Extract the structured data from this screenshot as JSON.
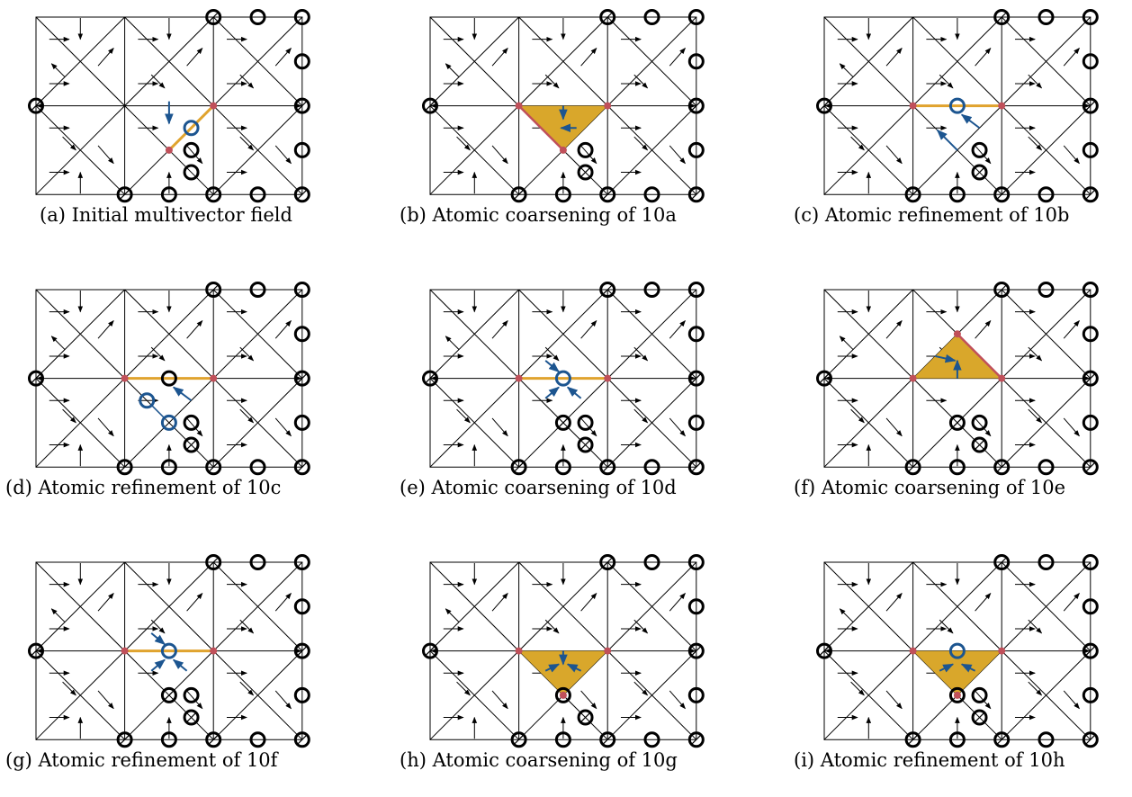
{
  "colors": {
    "grid": "#000000",
    "critical_dot": "#c0505a",
    "highlight_edge": "#e0a32e",
    "highlight_face": "#d9a72b",
    "face_boundary": "#c0505a",
    "modified_arrow": "#1c5590",
    "mv_circle": "#000000"
  },
  "panels": [
    {
      "id": "a",
      "caption": "(a) Initial multivector field"
    },
    {
      "id": "b",
      "caption": "(b) Atomic coarsening of 10a"
    },
    {
      "id": "c",
      "caption": "(c) Atomic refinement of 10b"
    },
    {
      "id": "d",
      "caption": "(d) Atomic refinement of 10c"
    },
    {
      "id": "e",
      "caption": "(e) Atomic coarsening of 10d"
    },
    {
      "id": "f",
      "caption": "(f) Atomic coarsening of 10e"
    },
    {
      "id": "g",
      "caption": "(g) Atomic refinement of 10f"
    },
    {
      "id": "h",
      "caption": "(h) Atomic coarsening of 10g"
    },
    {
      "id": "i",
      "caption": "(i) Atomic refinement of 10h"
    }
  ]
}
